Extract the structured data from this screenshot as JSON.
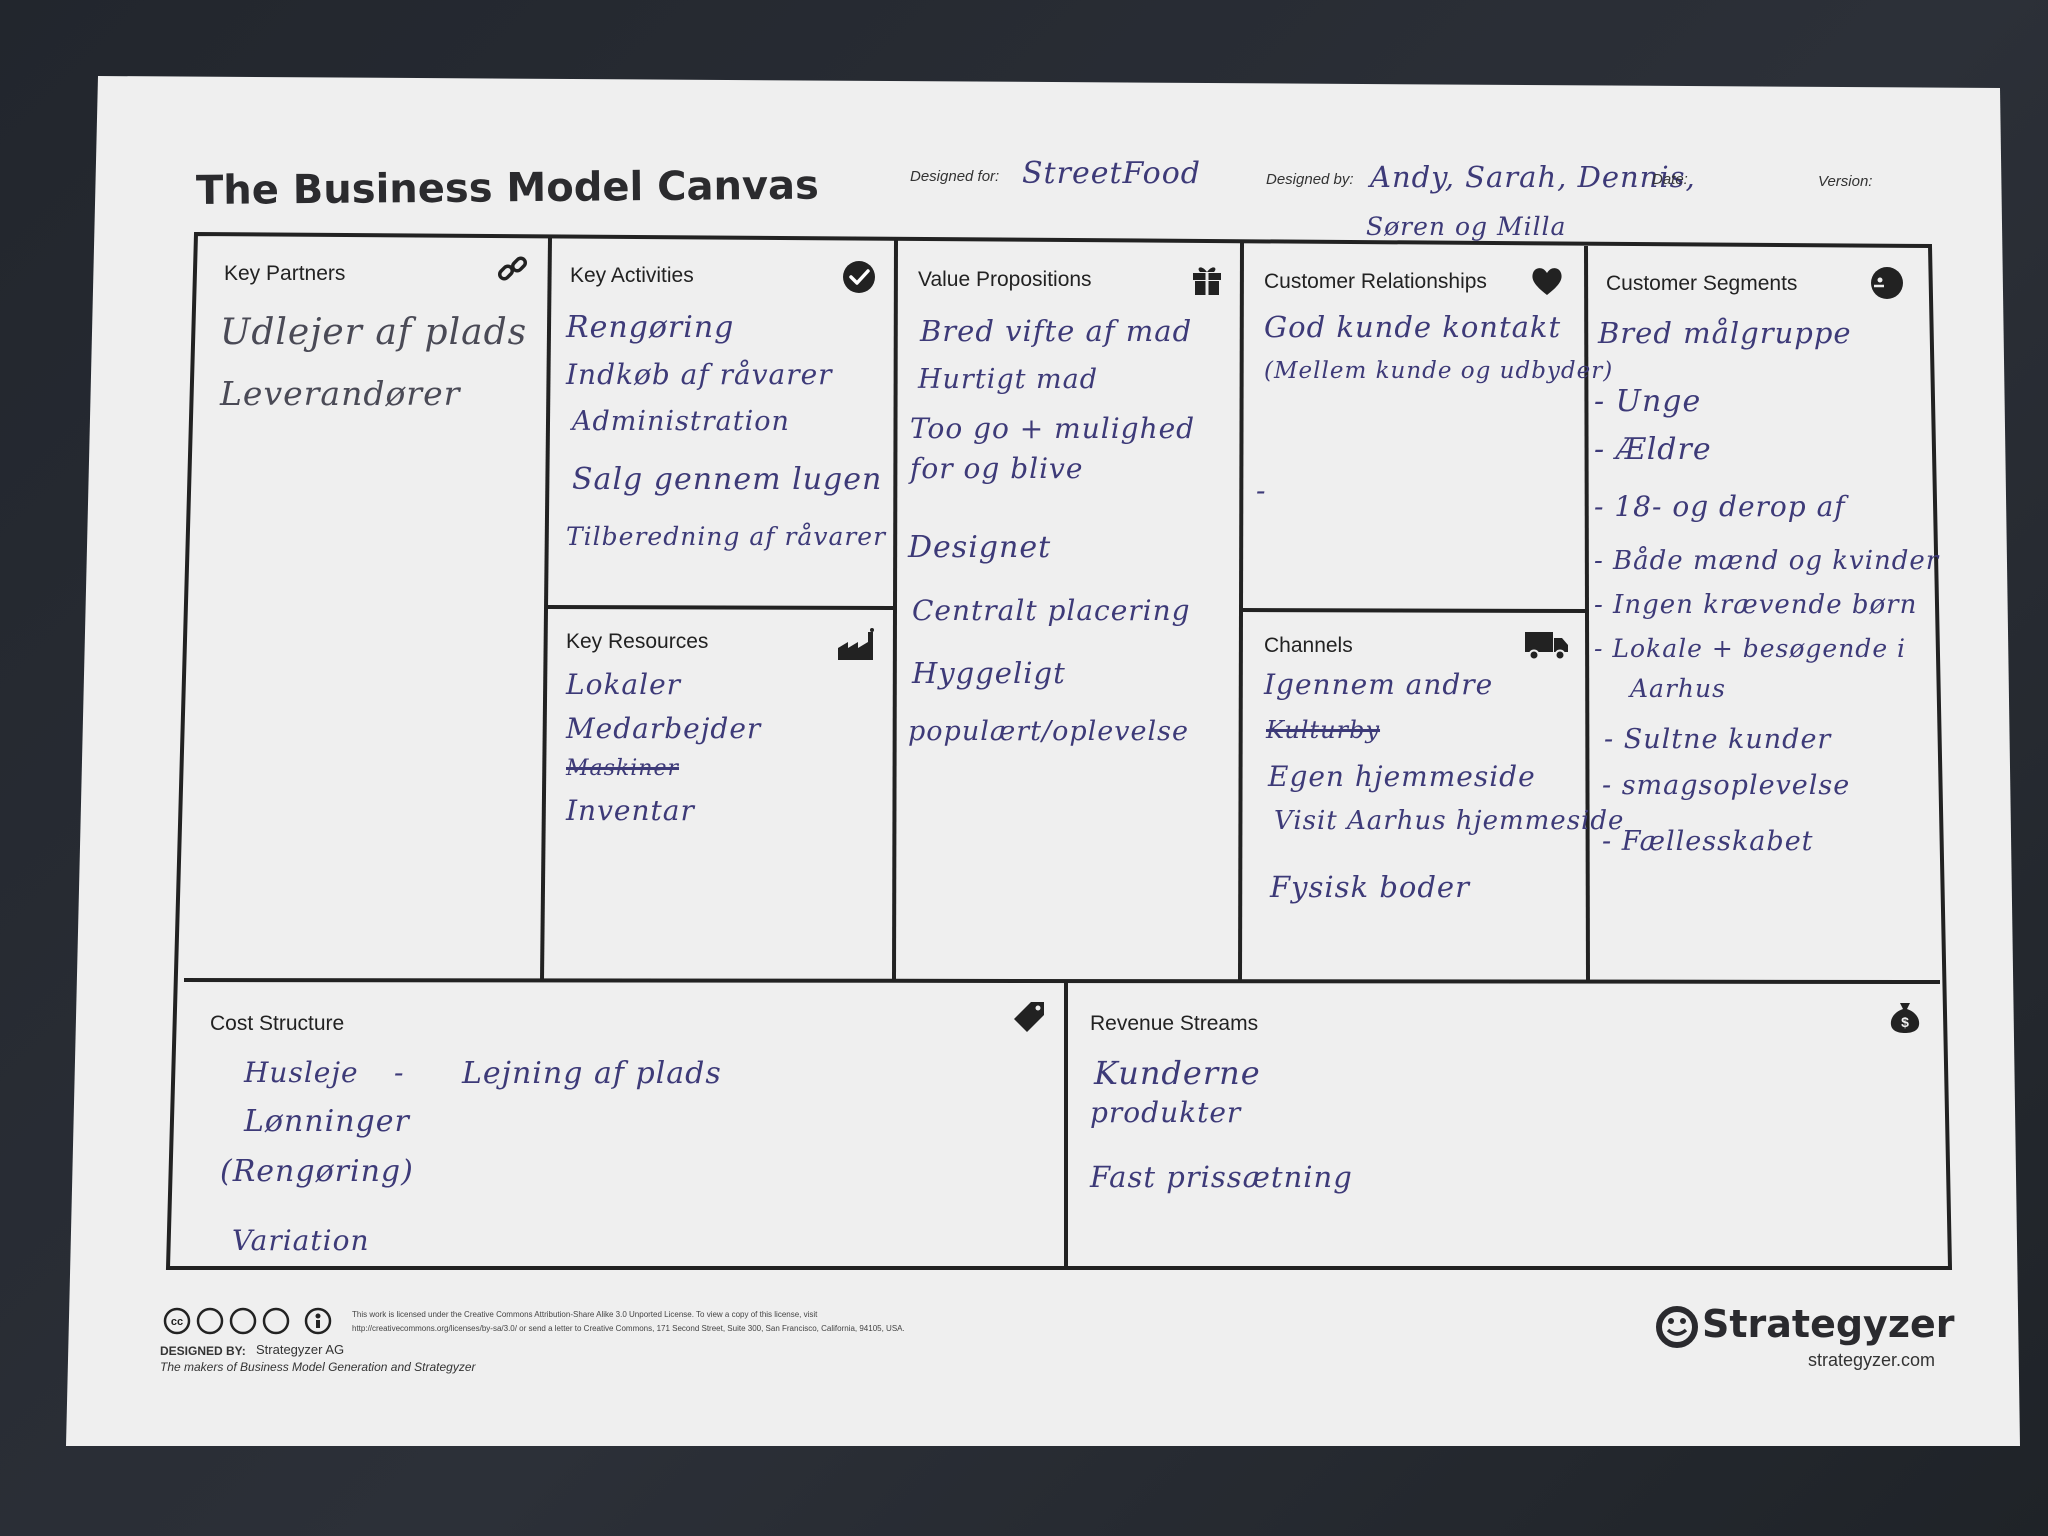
{
  "header": {
    "title": "The Business Model Canvas",
    "designed_for_label": "Designed for:",
    "designed_for_value": "StreetFood",
    "designed_by_label": "Designed by:",
    "designed_by_value_line1": "Andy, Sarah, Dennis,",
    "designed_by_value_line2": "Søren og Milla",
    "date_label": "Date:",
    "version_label": "Version:"
  },
  "blocks": {
    "key_partners": {
      "label": "Key Partners",
      "icon": "link-icon",
      "notes": [
        "Udlejer af plads",
        "Leverandører"
      ]
    },
    "key_activities": {
      "label": "Key Activities",
      "icon": "checkmark-icon",
      "notes": [
        "Rengøring",
        "Indkøb af råvarer",
        "Administration",
        "Salg gennem lugen",
        "Tilberedning af råvarer"
      ]
    },
    "key_resources": {
      "label": "Key Resources",
      "icon": "factory-icon",
      "notes": [
        "Lokaler",
        "Medarbejder",
        "Maskiner",
        "Inventar"
      ]
    },
    "value_propositions": {
      "label": "Value Propositions",
      "icon": "gift-icon",
      "notes": [
        "Bred vifte af mad",
        "Hurtigt mad",
        "Too go + mulighed",
        "for og blive",
        "Designet",
        "Centralt placering",
        "Hyggeligt",
        "populært/oplevelse"
      ]
    },
    "customer_relationships": {
      "label": "Customer Relationships",
      "icon": "heart-icon",
      "notes": [
        "God kunde kontakt",
        "(Mellem kunde og udbyder)",
        "-"
      ]
    },
    "channels": {
      "label": "Channels",
      "icon": "truck-icon",
      "notes": [
        "Igennem andre",
        "Kulturby",
        "Egen hjemmeside",
        "Visit Aarhus hjemmeside",
        "Fysisk boder"
      ]
    },
    "customer_segments": {
      "label": "Customer Segments",
      "icon": "face-icon",
      "notes": [
        "Bred målgruppe",
        "- Unge",
        "- Ældre",
        "- 18- og derop af",
        "- Både mænd og kvinder",
        "- Ingen krævende børn",
        "- Lokale + besøgende i",
        "Aarhus",
        "- Sultne kunder",
        "- smagsoplevelse",
        "- Fællesskabet"
      ]
    },
    "cost_structure": {
      "label": "Cost Structure",
      "icon": "tag-icon",
      "notes": [
        "Husleje",
        "-",
        "Lejning af plads",
        "Lønninger",
        "(Rengøring)",
        "Variation"
      ]
    },
    "revenue_streams": {
      "label": "Revenue Streams",
      "icon": "money-bag-icon",
      "notes": [
        "Kunderne",
        "produkter",
        "Fast prissætning"
      ]
    }
  },
  "footer": {
    "license_line1": "This work is licensed under the Creative Commons Attribution-Share Alike 3.0 Unported License. To view a copy of this license, visit",
    "license_line2": "http://creativecommons.org/licenses/by-sa/3.0/ or send a letter to Creative Commons, 171 Second Street, Suite 300, San Francisco, California, 94105, USA.",
    "designed_by_label": "DESIGNED BY:",
    "designed_by_value": "Strategyzer AG",
    "tagline": "The makers of Business Model Generation and Strategyzer",
    "brand": "Strategyzer",
    "brand_url": "strategyzer.com",
    "license_icons": [
      "cc-icon",
      "by-icon",
      "sa-icon",
      "nc-icon",
      "person-icon"
    ]
  }
}
